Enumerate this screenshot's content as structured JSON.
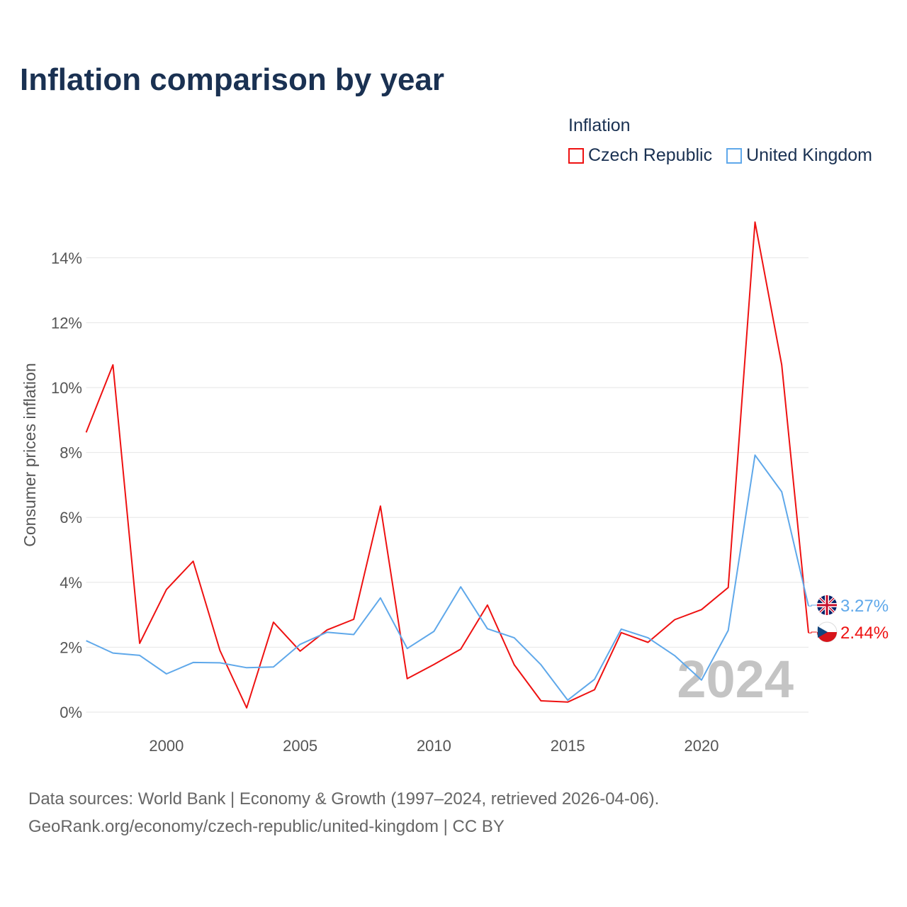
{
  "title": "Inflation comparison by year",
  "legend": {
    "title": "Inflation",
    "items": [
      {
        "label": "Czech Republic",
        "color": "#ee1111"
      },
      {
        "label": "United Kingdom",
        "color": "#5fa8ea"
      }
    ]
  },
  "footer": {
    "line1": "Data sources: World Bank | Economy & Growth (1997–2024, retrieved 2026-04-06).",
    "line2": "GeoRank.org/economy/czech-republic/united-kingdom | CC BY"
  },
  "chart_data": {
    "type": "line",
    "title": "Inflation comparison by year",
    "xlabel": "",
    "ylabel": "Consumer prices inflation",
    "x": [
      1997,
      1998,
      1999,
      2000,
      2001,
      2002,
      2003,
      2004,
      2005,
      2006,
      2007,
      2008,
      2009,
      2010,
      2011,
      2012,
      2013,
      2014,
      2015,
      2016,
      2017,
      2018,
      2019,
      2020,
      2021,
      2022,
      2023,
      2024
    ],
    "xlim": [
      1997,
      2024
    ],
    "ylim": [
      -0.3,
      15.4
    ],
    "x_ticks": [
      2000,
      2005,
      2010,
      2015,
      2020
    ],
    "x_tick_labels": [
      "2000",
      "2005",
      "2010",
      "2015",
      "2020"
    ],
    "y_ticks": [
      0,
      2,
      4,
      6,
      8,
      10,
      12,
      14
    ],
    "y_tick_labels": [
      "0%",
      "2%",
      "4%",
      "6%",
      "8%",
      "10%",
      "12%",
      "14%"
    ],
    "grid": true,
    "watermark_year": "2024",
    "series": [
      {
        "name": "Czech Republic",
        "color": "#ee1111",
        "end_label": "2.44%",
        "values": [
          8.62,
          10.7,
          2.12,
          3.78,
          4.65,
          1.9,
          0.13,
          2.77,
          1.88,
          2.53,
          2.86,
          6.35,
          1.03,
          1.47,
          1.94,
          3.3,
          1.46,
          0.35,
          0.31,
          0.69,
          2.45,
          2.15,
          2.85,
          3.16,
          3.84,
          15.1,
          10.7,
          2.44
        ]
      },
      {
        "name": "United Kingdom",
        "color": "#5fa8ea",
        "end_label": "3.27%",
        "values": [
          2.2,
          1.82,
          1.75,
          1.18,
          1.53,
          1.52,
          1.37,
          1.39,
          2.09,
          2.46,
          2.39,
          3.52,
          1.96,
          2.49,
          3.86,
          2.57,
          2.29,
          1.46,
          0.37,
          1.01,
          2.56,
          2.29,
          1.74,
          0.99,
          2.52,
          7.92,
          6.79,
          3.27
        ]
      }
    ]
  }
}
